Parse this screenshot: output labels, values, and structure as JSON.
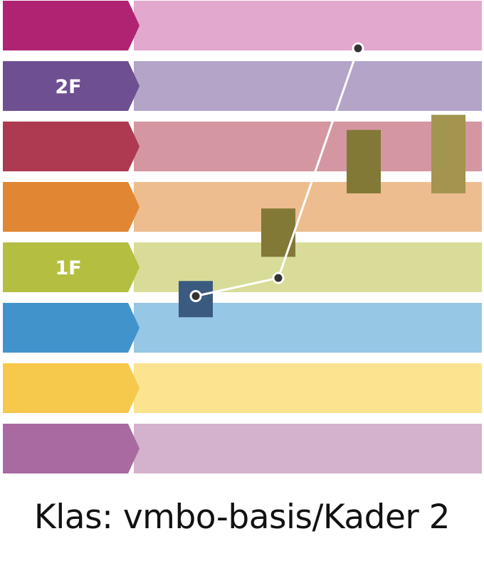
{
  "caption": "Klas: vmbo-basis/Kader 2",
  "chart_data": {
    "type": "bar",
    "levels": [
      {
        "label": "",
        "arrow_color": "#b02373",
        "band_color": "#e2a8ce"
      },
      {
        "label": "2F",
        "arrow_color": "#6e4f91",
        "band_color": "#b3a4c8"
      },
      {
        "label": "",
        "arrow_color": "#ad3a50",
        "band_color": "#d497a2"
      },
      {
        "label": "",
        "arrow_color": "#e18633",
        "band_color": "#edbd90"
      },
      {
        "label": "1F",
        "arrow_color": "#b4bf42",
        "band_color": "#d8dc98"
      },
      {
        "label": "",
        "arrow_color": "#4194cb",
        "band_color": "#96c7e4"
      },
      {
        "label": "",
        "arrow_color": "#f6c84b",
        "band_color": "#fbe38f"
      },
      {
        "label": "",
        "arrow_color": "#a96aa1",
        "band_color": "#d4b1cc"
      }
    ],
    "ylim": [
      0,
      8
    ],
    "range_bars": [
      {
        "low": 2.75,
        "high": 3.35,
        "color": "#3a5a80"
      },
      {
        "low": 3.75,
        "high": 4.55,
        "color": "#837937"
      },
      {
        "low": 4.8,
        "high": 5.85,
        "color": "#837937"
      },
      {
        "low": 4.8,
        "high": 6.1,
        "color": "#a3944f"
      }
    ],
    "line": {
      "values": [
        3.1,
        3.4,
        7.2
      ],
      "color": "#ffffff",
      "point_color": "#333333"
    }
  }
}
